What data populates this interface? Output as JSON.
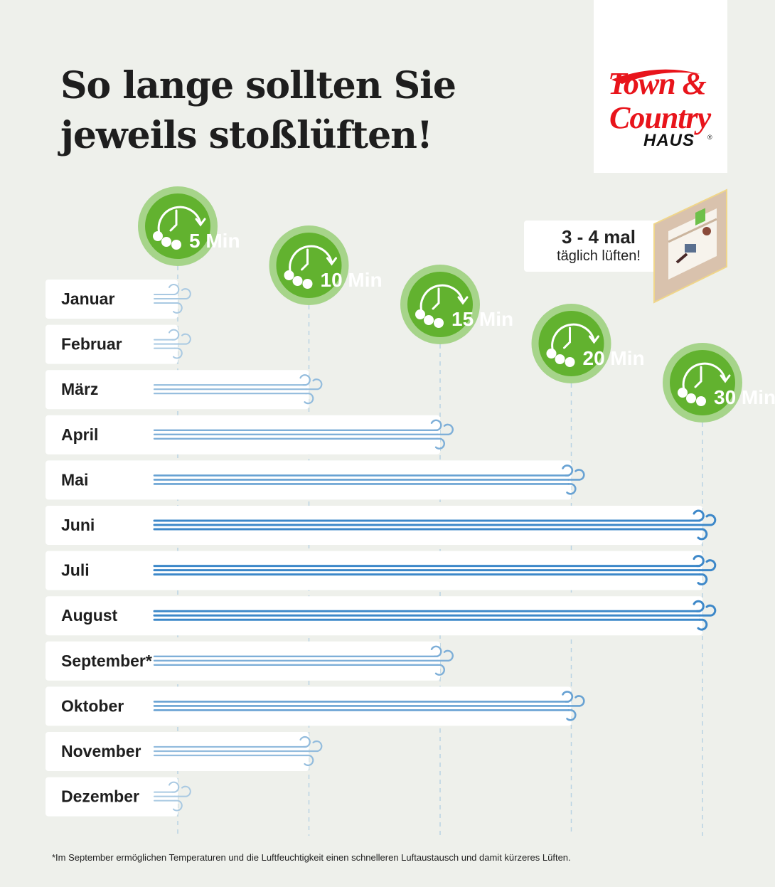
{
  "title": {
    "line1": "So lange sollten Sie",
    "line2": "jeweils stoßlüften!"
  },
  "logo": {
    "line1": "Town &",
    "line2": "Country",
    "line3": "HAUS",
    "registered": "®"
  },
  "tip": {
    "count": "3 - 4 mal",
    "text": "täglich lüften!"
  },
  "footnote": "*Im September ermöglichen Temperaturen und die Luftfeuchtigkeit einen schnelleren Luftaustausch und damit kürzeres Lüften.",
  "colors": {
    "background": "#eef0eb",
    "badge_inner": "#62b22f",
    "badge_outer": "#a6d48a",
    "wind_light": "#a9c9e2",
    "wind_dark": "#3d88c9",
    "logo_red": "#e8141b"
  },
  "chart_data": {
    "type": "bar",
    "orientation": "horizontal",
    "unit": "Min",
    "ticks": [
      5,
      10,
      15,
      20,
      30
    ],
    "tick_labels": [
      "5 Min",
      "10 Min",
      "15 Min",
      "20 Min",
      "30 Min"
    ],
    "categories": [
      "Januar",
      "Februar",
      "März",
      "April",
      "Mai",
      "Juni",
      "Juli",
      "August",
      "September*",
      "Oktober",
      "November",
      "Dezember"
    ],
    "values": [
      5,
      5,
      10,
      15,
      20,
      30,
      30,
      30,
      15,
      20,
      10,
      5
    ],
    "grid": "vertical dashed lines at ticks"
  }
}
